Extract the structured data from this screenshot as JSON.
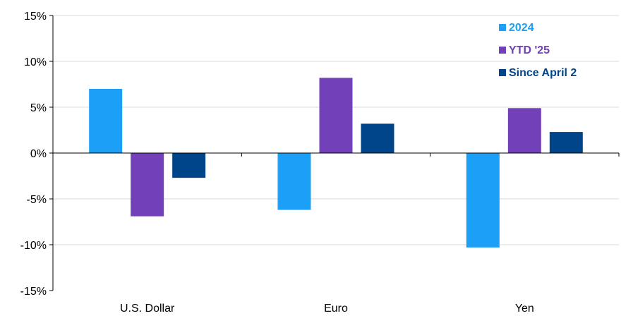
{
  "chart_data": {
    "type": "bar",
    "categories": [
      "U.S. Dollar",
      "Euro",
      "Yen"
    ],
    "series": [
      {
        "name": "2024",
        "values": [
          7.0,
          -6.2,
          -10.3
        ],
        "color": "#1C9FF6"
      },
      {
        "name": "YTD '25",
        "values": [
          -6.9,
          8.2,
          4.9
        ],
        "color": "#7240B8"
      },
      {
        "name": "Since April 2",
        "values": [
          -2.7,
          3.2,
          2.3
        ],
        "color": "#00458A"
      }
    ],
    "title": "",
    "xlabel": "",
    "ylabel": "",
    "ylim": [
      -15,
      15
    ],
    "yticks": [
      15,
      10,
      5,
      0,
      -5,
      -10,
      -15
    ],
    "ytick_labels": [
      "15%",
      "10%",
      "5%",
      "0%",
      "-5%",
      "-10%",
      "-15%"
    ],
    "grid": true,
    "legend_position": "top-right"
  }
}
